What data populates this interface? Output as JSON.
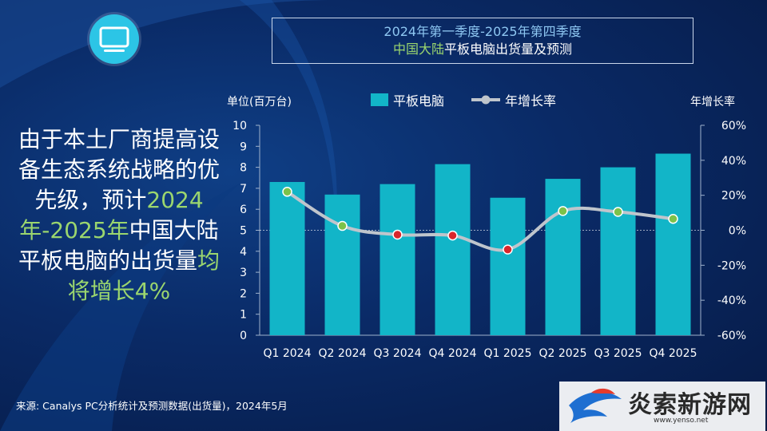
{
  "header": {
    "title_line1": "2024年第一季度-2025年第四季度",
    "title_line2_highlight": "中国大陆",
    "title_line2_rest": "平板电脑出货量及预测"
  },
  "headline": {
    "part1": "由于本土厂商提高设备生态系统战略的优先级，预计",
    "part2_green": "2024年-2025年",
    "part3": "中国大陆平板电脑的出货量",
    "part4_green": "均将增长4%"
  },
  "icons": {
    "top_left": "tablet-icon",
    "logo": "bird-logo-icon"
  },
  "colors": {
    "bar": "#12b5c8",
    "line": "#bfc5cc",
    "marker_positive": "#7cc24a",
    "marker_negative": "#d9262c",
    "accent_green": "#9bd66e"
  },
  "chart_data": {
    "type": "bar",
    "ylabel_left": "单位(百万台)",
    "ylabel_right": "年增长率",
    "categories": [
      "Q1 2024",
      "Q2 2024",
      "Q3 2024",
      "Q4 2024",
      "Q1 2025",
      "Q2 2025",
      "Q3 2025",
      "Q4 2025"
    ],
    "series": [
      {
        "name": "平板电脑",
        "type": "bar",
        "axis": "left",
        "values": [
          7.3,
          6.7,
          7.2,
          8.15,
          6.55,
          7.45,
          8.0,
          8.65
        ]
      },
      {
        "name": "年增长率",
        "type": "line",
        "axis": "right",
        "values": [
          22,
          2.5,
          -2.5,
          -3,
          -11,
          11,
          10.5,
          6.5
        ]
      }
    ],
    "ylim_left": [
      0,
      10
    ],
    "yticks_left": [
      "0",
      "1",
      "2",
      "3",
      "4",
      "5",
      "6",
      "7",
      "8",
      "9",
      "10"
    ],
    "ylim_right": [
      -60,
      60
    ],
    "yticks_right": [
      "-60%",
      "-40%",
      "-20%",
      "0%",
      "20%",
      "40%",
      "60%"
    ],
    "legend": "top-center",
    "zero_line_right": true
  },
  "source": "来源: Canalys PC分析统计及预测数据(出货量)，2024年5月",
  "logo": {
    "text": "炎索新游网",
    "url": "www.yenso.net"
  }
}
